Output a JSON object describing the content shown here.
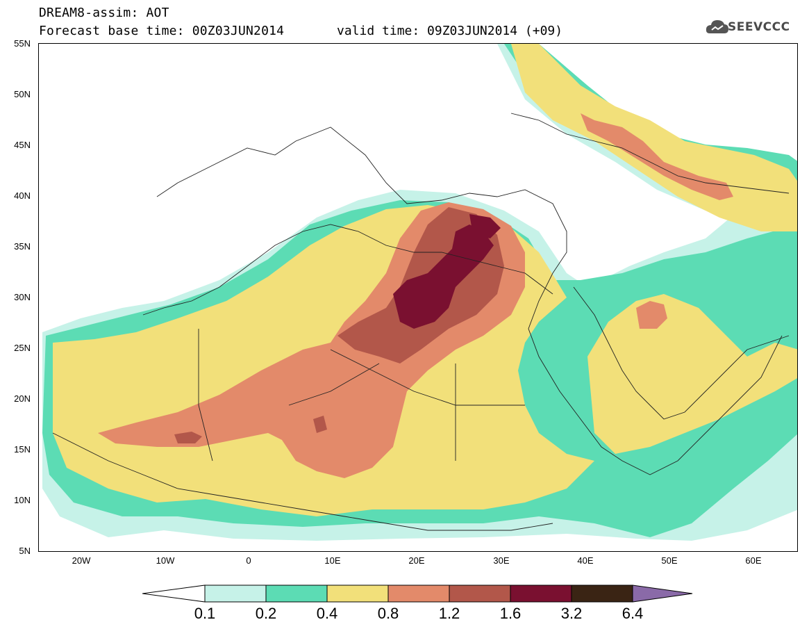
{
  "header": {
    "title": "DREAM8-assim: AOT",
    "base_time": "Forecast base time: 00Z03JUN2014",
    "valid_time": "valid time: 09Z03JUN2014 (+09)",
    "logo_text": "SEEVCCC"
  },
  "map": {
    "lat_labels": [
      "55N",
      "50N",
      "45N",
      "40N",
      "35N",
      "30N",
      "25N",
      "20N",
      "15N",
      "10N",
      "5N"
    ],
    "lon_labels": [
      "20W",
      "10W",
      "0",
      "10E",
      "20E",
      "30E",
      "40E",
      "50E",
      "60E"
    ]
  },
  "colorbar": {
    "colors": [
      "#c6f2e8",
      "#5cdcb4",
      "#f2e07a",
      "#e38a6a",
      "#b2574a",
      "#7a1030",
      "#3a2414",
      "#8a6aa8"
    ],
    "labels": [
      "0.1",
      "0.2",
      "0.4",
      "0.8",
      "1.2",
      "1.6",
      "3.2",
      "6.4"
    ]
  }
}
